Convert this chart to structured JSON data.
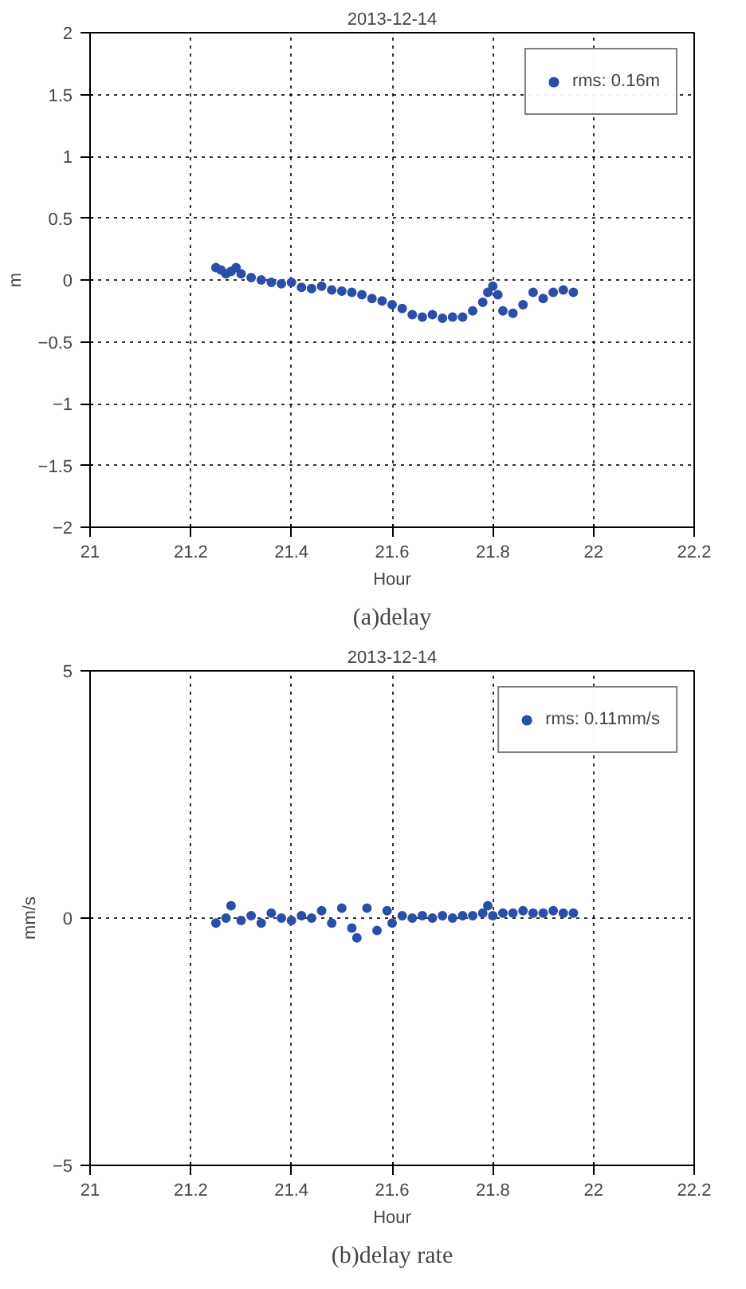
{
  "chart_data": [
    {
      "type": "scatter",
      "title": "2013-12-14",
      "xlabel": "Hour",
      "ylabel": "m",
      "xlim": [
        21,
        22.2
      ],
      "ylim": [
        -2,
        2
      ],
      "xticks": [
        21,
        21.2,
        21.4,
        21.6,
        21.8,
        22,
        22.2
      ],
      "yticks": [
        -2,
        -1.5,
        -1,
        -0.5,
        0,
        0.5,
        1,
        1.5,
        2
      ],
      "grid": true,
      "legend": "top right",
      "marker": "circle",
      "annotations": [
        "(a)delay"
      ],
      "series": [
        {
          "name": "rms: 0.16m",
          "color": "#2b4ea8",
          "x": [
            21.25,
            21.26,
            21.27,
            21.28,
            21.29,
            21.3,
            21.32,
            21.34,
            21.36,
            21.38,
            21.4,
            21.42,
            21.44,
            21.46,
            21.48,
            21.5,
            21.52,
            21.54,
            21.56,
            21.58,
            21.6,
            21.62,
            21.64,
            21.66,
            21.68,
            21.7,
            21.72,
            21.74,
            21.76,
            21.78,
            21.79,
            21.8,
            21.81,
            21.82,
            21.84,
            21.86,
            21.88,
            21.9,
            21.92,
            21.94,
            21.96
          ],
          "values": [
            0.1,
            0.08,
            0.05,
            0.07,
            0.1,
            0.05,
            0.02,
            0.0,
            -0.02,
            -0.03,
            -0.02,
            -0.06,
            -0.07,
            -0.05,
            -0.08,
            -0.09,
            -0.1,
            -0.12,
            -0.15,
            -0.17,
            -0.2,
            -0.23,
            -0.28,
            -0.3,
            -0.28,
            -0.31,
            -0.3,
            -0.3,
            -0.25,
            -0.18,
            -0.1,
            -0.05,
            -0.12,
            -0.25,
            -0.27,
            -0.2,
            -0.1,
            -0.15,
            -0.1,
            -0.08,
            -0.1
          ]
        }
      ]
    },
    {
      "type": "scatter",
      "title": "2013-12-14",
      "xlabel": "Hour",
      "ylabel": "mm/s",
      "xlim": [
        21,
        22.2
      ],
      "ylim": [
        -5,
        5
      ],
      "xticks": [
        21,
        21.2,
        21.4,
        21.6,
        21.8,
        22,
        22.2
      ],
      "yticks": [
        -5,
        0,
        5
      ],
      "grid": true,
      "legend": "top right",
      "marker": "circle",
      "annotations": [
        "(b)delay rate"
      ],
      "series": [
        {
          "name": "rms: 0.11mm/s",
          "color": "#2b4ea8",
          "x": [
            21.25,
            21.27,
            21.28,
            21.3,
            21.32,
            21.34,
            21.36,
            21.38,
            21.4,
            21.42,
            21.44,
            21.46,
            21.48,
            21.5,
            21.52,
            21.53,
            21.55,
            21.57,
            21.59,
            21.6,
            21.62,
            21.64,
            21.66,
            21.68,
            21.7,
            21.72,
            21.74,
            21.76,
            21.78,
            21.79,
            21.8,
            21.82,
            21.84,
            21.86,
            21.88,
            21.9,
            21.92,
            21.94,
            21.96
          ],
          "values": [
            -0.1,
            0.0,
            0.25,
            -0.05,
            0.05,
            -0.1,
            0.1,
            0.0,
            -0.05,
            0.05,
            0.0,
            0.15,
            -0.1,
            0.2,
            -0.2,
            -0.4,
            0.2,
            -0.25,
            0.15,
            -0.1,
            0.05,
            0.0,
            0.05,
            0.0,
            0.05,
            0.0,
            0.05,
            0.05,
            0.1,
            0.25,
            0.05,
            0.1,
            0.1,
            0.15,
            0.1,
            0.1,
            0.15,
            0.1,
            0.1
          ]
        }
      ]
    }
  ]
}
